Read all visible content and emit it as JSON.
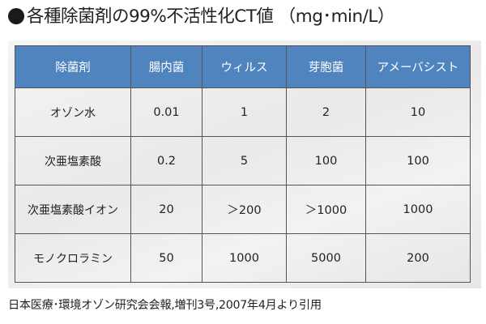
{
  "title": "各種除菌剤の99%不活性化CT値 （mg･min/L）",
  "table": {
    "headers": [
      "除菌剤",
      "腸内菌",
      "ウィルス",
      "芽胞菌",
      "アメーバシスト"
    ],
    "rows": [
      [
        "オゾン水",
        "0.01",
        "1",
        "2",
        "10"
      ],
      [
        "次亜塩素酸",
        "0.2",
        "5",
        "100",
        "100"
      ],
      [
        "次亜塩素酸イオン",
        "20",
        "＞200",
        "＞1000",
        "1000"
      ],
      [
        "モノクロラミン",
        "50",
        "1000",
        "5000",
        "200"
      ]
    ]
  },
  "source": "日本医療･環境オゾン研究会会報,増刊3号,2007年4月より引用",
  "colors": {
    "header_bg": "#4f84bf",
    "header_text": "#ffffff"
  }
}
